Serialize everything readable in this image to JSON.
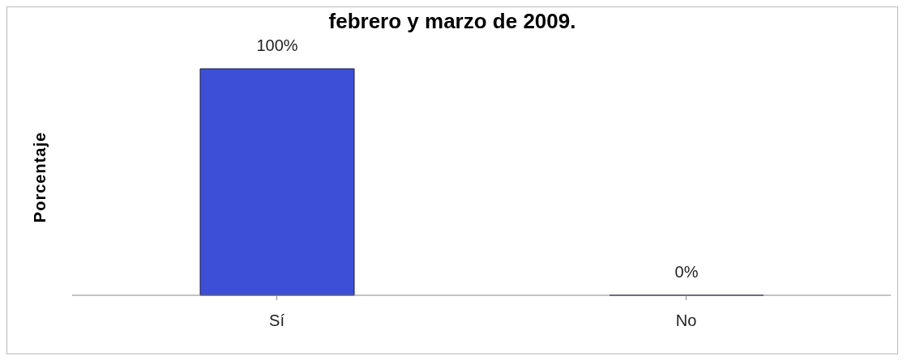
{
  "chart_data": {
    "type": "bar",
    "title": "febrero y marzo de 2009.",
    "ylabel": "Porcentaje",
    "categories": [
      "Sí",
      "No"
    ],
    "values": [
      100,
      0
    ],
    "color": "#3d4fd6",
    "data_labels": true,
    "value_labels": [
      "100%",
      "0%"
    ],
    "grid": false,
    "legend": false
  }
}
